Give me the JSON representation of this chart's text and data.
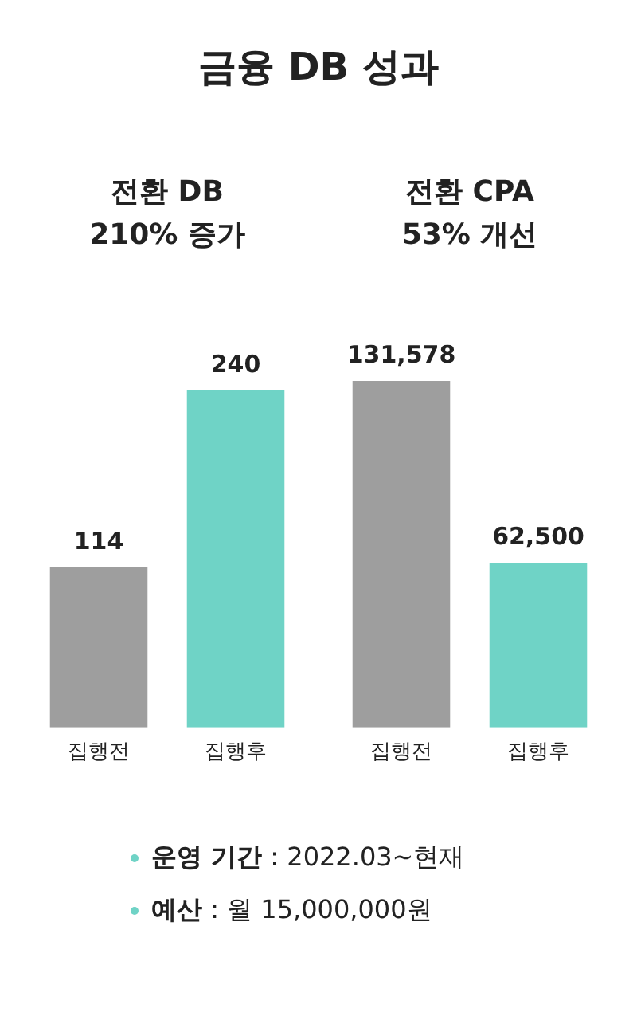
{
  "chart_data": [
    {
      "type": "other",
      "title": "금융 DB 성과"
    },
    {
      "type": "bar",
      "title": "전환 DB\n210% 증가",
      "categories": [
        "집행전",
        "집행후"
      ],
      "values": [
        114,
        240
      ],
      "colors": [
        "#9e9e9e",
        "#6fd3c6"
      ],
      "data_labels": true,
      "grid": false,
      "legend": false
    },
    {
      "type": "bar",
      "title": "전환 CPA\n53% 개선",
      "categories": [
        "집행전",
        "집행후"
      ],
      "values": [
        131578,
        62500
      ],
      "value_labels": [
        "131,578",
        "62,500"
      ],
      "colors": [
        "#9e9e9e",
        "#6fd3c6"
      ],
      "grid": false,
      "legend": false
    },
    {
      "type": "other",
      "annotations": [
        "운영 기간 : 2022.03~현재",
        "예산 : 월 15,000,000원"
      ]
    }
  ]
}
